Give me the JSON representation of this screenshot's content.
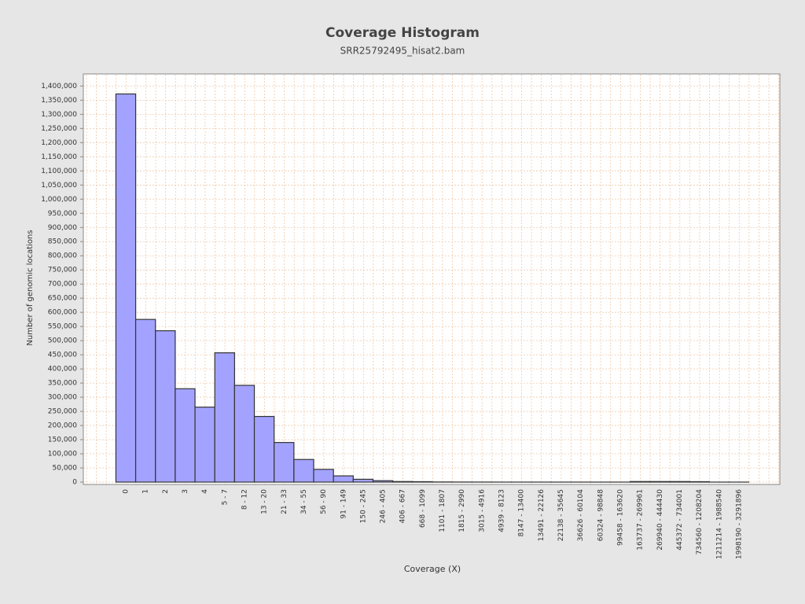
{
  "chart_data": {
    "type": "bar",
    "title": "Coverage Histogram",
    "subtitle": "SRR25792495_hisat2.bam",
    "x_label": "Coverage (X)",
    "y_label": "Number of genomic locations",
    "categories": [
      "0",
      "1",
      "2",
      "3",
      "4",
      "5 - 7",
      "8 - 12",
      "13 - 20",
      "21 - 33",
      "34 - 55",
      "56 - 90",
      "91 - 149",
      "150 - 245",
      "246 - 405",
      "406 - 667",
      "668 - 1099",
      "1101 - 1807",
      "1815 - 2990",
      "3015 - 4916",
      "4939 - 8123",
      "8147 - 13400",
      "13491 - 22126",
      "22138 - 35645",
      "36626 - 60104",
      "60324 - 98848",
      "99458 - 163620",
      "163737 - 269961",
      "269940 - 444430",
      "445372 - 734001",
      "734560 - 1208204",
      "1211214 - 1988540",
      "1998190 - 3291896"
    ],
    "values": [
      1372000,
      575000,
      535000,
      330000,
      265000,
      457000,
      342000,
      232000,
      140000,
      80000,
      45000,
      22000,
      10000,
      5000,
      2000,
      1500,
      500,
      300,
      200,
      100,
      100,
      100,
      100,
      100,
      100,
      100,
      2000,
      2000,
      2000,
      1500,
      100,
      100
    ],
    "color": "#a3a3ff",
    "ylim": [
      0,
      1440000
    ],
    "yticks": [
      {
        "value": 0,
        "label": "0"
      },
      {
        "value": 50000,
        "label": "50,000"
      },
      {
        "value": 100000,
        "label": "100,000"
      },
      {
        "value": 150000,
        "label": "150,000"
      },
      {
        "value": 200000,
        "label": "200,000"
      },
      {
        "value": 250000,
        "label": "250,000"
      },
      {
        "value": 300000,
        "label": "300,000"
      },
      {
        "value": 350000,
        "label": "350,000"
      },
      {
        "value": 400000,
        "label": "400,000"
      },
      {
        "value": 450000,
        "label": "450,000"
      },
      {
        "value": 500000,
        "label": "500,000"
      },
      {
        "value": 550000,
        "label": "550,000"
      },
      {
        "value": 600000,
        "label": "600,000"
      },
      {
        "value": 650000,
        "label": "650,000"
      },
      {
        "value": 700000,
        "label": "700,000"
      },
      {
        "value": 750000,
        "label": "750,000"
      },
      {
        "value": 800000,
        "label": "800,000"
      },
      {
        "value": 850000,
        "label": "850,000"
      },
      {
        "value": 900000,
        "label": "900,000"
      },
      {
        "value": 950000,
        "label": "950,000"
      },
      {
        "value": 1000000,
        "label": "1,000,000"
      },
      {
        "value": 1050000,
        "label": "1,050,000"
      },
      {
        "value": 1100000,
        "label": "1,100,000"
      },
      {
        "value": 1150000,
        "label": "1,150,000"
      },
      {
        "value": 1200000,
        "label": "1,200,000"
      },
      {
        "value": 1250000,
        "label": "1,250,000"
      },
      {
        "value": 1300000,
        "label": "1,300,000"
      },
      {
        "value": 1350000,
        "label": "1,350,000"
      },
      {
        "value": 1400000,
        "label": "1,400,000"
      }
    ],
    "grid": true
  }
}
